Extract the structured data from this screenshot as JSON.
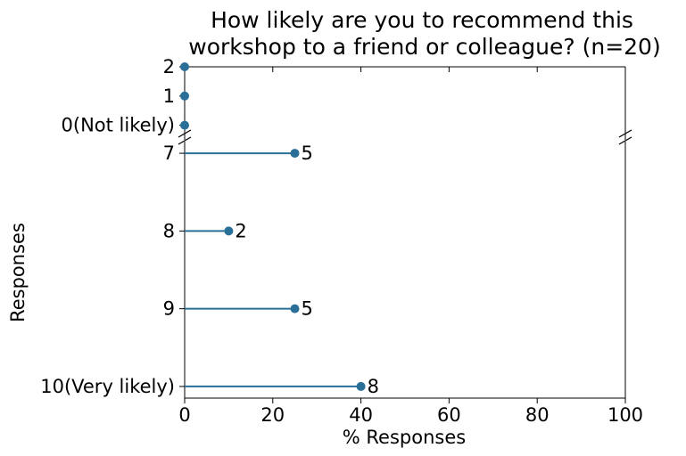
{
  "chart_data": {
    "type": "lollipop",
    "title_lines": [
      "How likely are you to recommend this",
      "workshop to a friend or colleague? (n=20)"
    ],
    "xlabel": "% Responses",
    "ylabel": "Responses",
    "xlim": [
      0,
      100
    ],
    "xticks": [
      "0",
      "20",
      "40",
      "60",
      "80",
      "100"
    ],
    "broken_y_axis": true,
    "grid": false,
    "color": "#2a6f97",
    "top_panel": {
      "categories": [
        "0(Not likely)",
        "1",
        "2"
      ],
      "percent": [
        0,
        0,
        0
      ]
    },
    "bottom_panel": {
      "categories": [
        "7",
        "8",
        "9",
        "10(Very likely)"
      ],
      "percent": [
        25,
        10,
        25,
        40
      ],
      "counts": [
        "5",
        "2",
        "5",
        "8"
      ]
    }
  }
}
